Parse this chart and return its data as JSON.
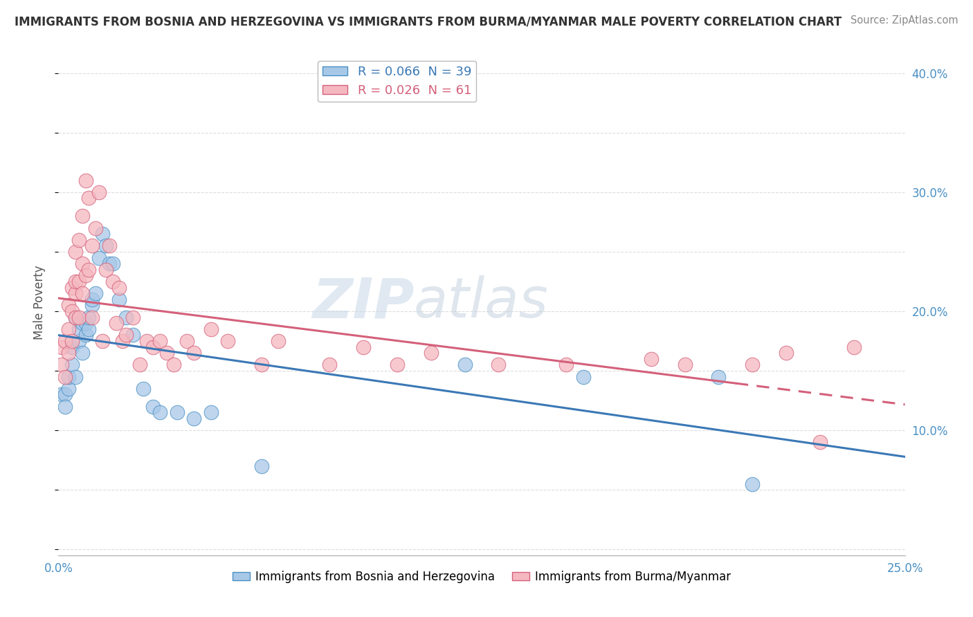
{
  "title": "IMMIGRANTS FROM BOSNIA AND HERZEGOVINA VS IMMIGRANTS FROM BURMA/MYANMAR MALE POVERTY CORRELATION CHART",
  "source": "Source: ZipAtlas.com",
  "ylabel": "Male Poverty",
  "ylabel_right_ticks": [
    0.1,
    0.2,
    0.3,
    0.4
  ],
  "ylabel_right_labels": [
    "10.0%",
    "20.0%",
    "30.0%",
    "40.0%"
  ],
  "legend_label_bosnia": "R = 0.066  N = 39",
  "legend_label_burma": "R = 0.026  N = 61",
  "legend_bottom_bosnia": "Immigrants from Bosnia and Herzegovina",
  "legend_bottom_burma": "Immigrants from Burma/Myanmar",
  "series_bosnia": {
    "color": "#a8c8e8",
    "color_edge": "#4a90c4",
    "color_line": "#3a78b5",
    "x": [
      0.001,
      0.002,
      0.002,
      0.003,
      0.003,
      0.004,
      0.004,
      0.005,
      0.005,
      0.006,
      0.006,
      0.007,
      0.007,
      0.008,
      0.008,
      0.009,
      0.009,
      0.01,
      0.01,
      0.011,
      0.012,
      0.013,
      0.014,
      0.015,
      0.016,
      0.018,
      0.02,
      0.022,
      0.025,
      0.028,
      0.03,
      0.035,
      0.04,
      0.045,
      0.06,
      0.12,
      0.155,
      0.195,
      0.205
    ],
    "y": [
      0.13,
      0.13,
      0.12,
      0.135,
      0.145,
      0.155,
      0.17,
      0.145,
      0.195,
      0.175,
      0.185,
      0.19,
      0.165,
      0.18,
      0.19,
      0.185,
      0.195,
      0.205,
      0.21,
      0.215,
      0.245,
      0.265,
      0.255,
      0.24,
      0.24,
      0.21,
      0.195,
      0.18,
      0.135,
      0.12,
      0.115,
      0.115,
      0.11,
      0.115,
      0.07,
      0.155,
      0.145,
      0.145,
      0.055
    ]
  },
  "series_burma": {
    "color": "#f5b8c0",
    "color_edge": "#d4607a",
    "color_line": "#d4607a",
    "x": [
      0.001,
      0.001,
      0.002,
      0.002,
      0.003,
      0.003,
      0.003,
      0.004,
      0.004,
      0.004,
      0.005,
      0.005,
      0.005,
      0.005,
      0.006,
      0.006,
      0.006,
      0.007,
      0.007,
      0.007,
      0.008,
      0.008,
      0.009,
      0.009,
      0.01,
      0.01,
      0.011,
      0.012,
      0.013,
      0.014,
      0.015,
      0.016,
      0.017,
      0.018,
      0.019,
      0.02,
      0.022,
      0.024,
      0.026,
      0.028,
      0.03,
      0.032,
      0.034,
      0.038,
      0.04,
      0.045,
      0.05,
      0.06,
      0.065,
      0.08,
      0.09,
      0.1,
      0.11,
      0.13,
      0.15,
      0.175,
      0.185,
      0.205,
      0.215,
      0.225,
      0.235
    ],
    "y": [
      0.155,
      0.17,
      0.145,
      0.175,
      0.165,
      0.185,
      0.205,
      0.175,
      0.2,
      0.22,
      0.195,
      0.215,
      0.225,
      0.25,
      0.195,
      0.225,
      0.26,
      0.215,
      0.24,
      0.28,
      0.23,
      0.31,
      0.235,
      0.295,
      0.195,
      0.255,
      0.27,
      0.3,
      0.175,
      0.235,
      0.255,
      0.225,
      0.19,
      0.22,
      0.175,
      0.18,
      0.195,
      0.155,
      0.175,
      0.17,
      0.175,
      0.165,
      0.155,
      0.175,
      0.165,
      0.185,
      0.175,
      0.155,
      0.175,
      0.155,
      0.17,
      0.155,
      0.165,
      0.155,
      0.155,
      0.16,
      0.155,
      0.155,
      0.165,
      0.09,
      0.17
    ]
  },
  "xlim": [
    0.0,
    0.25
  ],
  "ylim": [
    -0.005,
    0.42
  ],
  "trendline_solid_end": 0.2,
  "watermark_zip": "ZIP",
  "watermark_atlas": "atlas",
  "background_color": "#ffffff",
  "grid_color": "#dddddd"
}
